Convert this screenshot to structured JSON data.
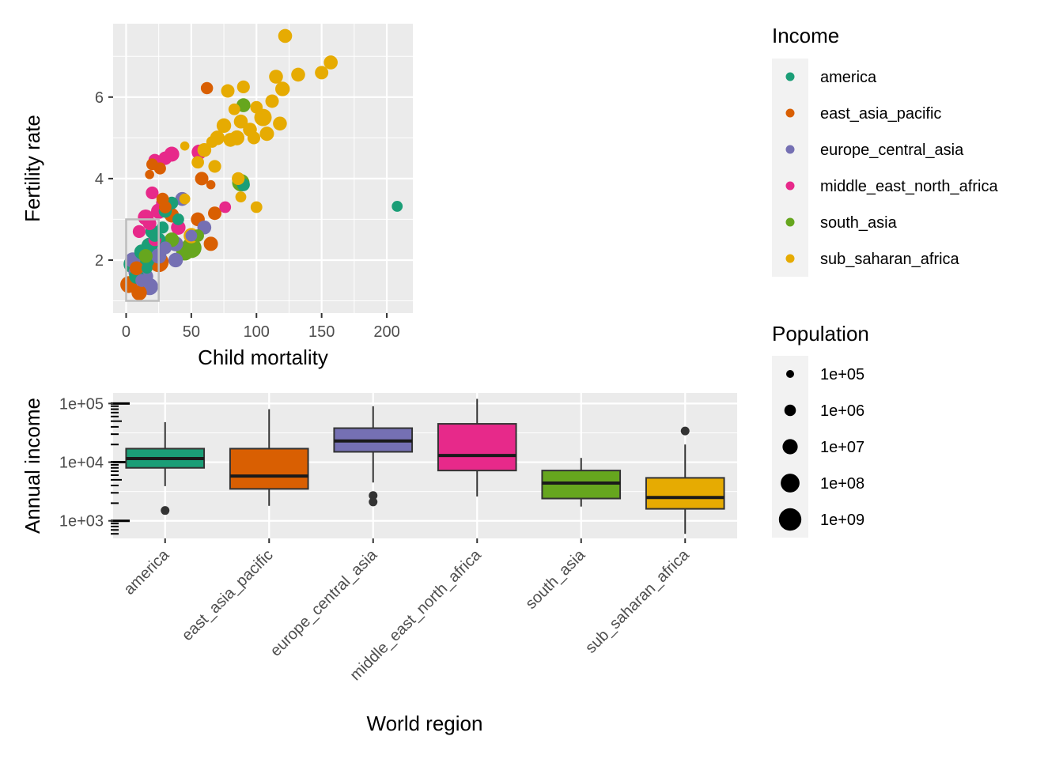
{
  "colors": {
    "panel_bg": "#ebebeb",
    "grid": "#ffffff",
    "text": "#000000",
    "tick_text": "#4d4d4d",
    "zoom_box": "#bdbdbd",
    "legend_key_bg": "#f2f2f2"
  },
  "chart_data": [
    {
      "type": "scatter",
      "xlabel": "Child mortality",
      "ylabel": "Fertility rate",
      "xlim": [
        -10,
        220
      ],
      "ylim": [
        0.7,
        7.8
      ],
      "xticks": [
        0,
        50,
        100,
        150,
        200
      ],
      "xtick_labels": [
        "0",
        "50",
        "100",
        "150",
        "200"
      ],
      "yticks": [
        2,
        4,
        6
      ],
      "ytick_labels": [
        "2",
        "4",
        "6"
      ],
      "zoom_box": {
        "x": [
          0,
          25
        ],
        "y": [
          1,
          3
        ]
      },
      "series": [
        {
          "name": "america",
          "color": "#1b9e77",
          "points": [
            {
              "x": 208,
              "y": 3.32,
              "pop": 3000000.0
            },
            {
              "x": 90,
              "y": 3.85,
              "pop": 10000000.0
            },
            {
              "x": 5,
              "y": 1.9,
              "pop": 300000000.0
            },
            {
              "x": 18,
              "y": 2.35,
              "pop": 100000000.0
            },
            {
              "x": 12,
              "y": 2.2,
              "pop": 40000000.0
            },
            {
              "x": 25,
              "y": 2.5,
              "pop": 20000000.0
            },
            {
              "x": 30,
              "y": 3.2,
              "pop": 12000000.0
            },
            {
              "x": 35,
              "y": 3.4,
              "pop": 10000000.0
            },
            {
              "x": 20,
              "y": 2.7,
              "pop": 20000000.0
            },
            {
              "x": 8,
              "y": 1.6,
              "pop": 35000000.0
            },
            {
              "x": 15,
              "y": 2.0,
              "pop": 200000000.0
            },
            {
              "x": 22,
              "y": 2.6,
              "pop": 8000000.0
            },
            {
              "x": 28,
              "y": 2.8,
              "pop": 6000000.0
            },
            {
              "x": 40,
              "y": 3.0,
              "pop": 5000000.0
            },
            {
              "x": 16,
              "y": 1.8,
              "pop": 3000000.0
            }
          ]
        },
        {
          "name": "east_asia_pacific",
          "color": "#d95f02",
          "points": [
            {
              "x": 62,
              "y": 6.22,
              "pop": 7000000.0
            },
            {
              "x": 2,
              "y": 1.4,
              "pop": 130000000.0
            },
            {
              "x": 10,
              "y": 1.2,
              "pop": 50000000.0
            },
            {
              "x": 25,
              "y": 1.95,
              "pop": 900000000.0
            },
            {
              "x": 26,
              "y": 4.25,
              "pop": 6000000.0
            },
            {
              "x": 20,
              "y": 4.35,
              "pop": 5000000.0
            },
            {
              "x": 18,
              "y": 4.1,
              "pop": 1000000.0
            },
            {
              "x": 58,
              "y": 4.0,
              "pop": 15000000.0
            },
            {
              "x": 65,
              "y": 3.85,
              "pop": 1000000.0
            },
            {
              "x": 68,
              "y": 3.15,
              "pop": 15000000.0
            },
            {
              "x": 65,
              "y": 2.4,
              "pop": 25000000.0
            },
            {
              "x": 30,
              "y": 3.3,
              "pop": 8000000.0
            },
            {
              "x": 35,
              "y": 3.1,
              "pop": 30000000.0
            },
            {
              "x": 8,
              "y": 1.8,
              "pop": 20000000.0
            },
            {
              "x": 55,
              "y": 3.0,
              "pop": 20000000.0
            },
            {
              "x": 28,
              "y": 3.5,
              "pop": 8000000.0
            }
          ]
        },
        {
          "name": "europe_central_asia",
          "color": "#7570b3",
          "points": [
            {
              "x": 5,
              "y": 2.0,
              "pop": 50000000.0
            },
            {
              "x": 18,
              "y": 1.35,
              "pop": 150000000.0
            },
            {
              "x": 38,
              "y": 2.0,
              "pop": 30000000.0
            },
            {
              "x": 43,
              "y": 3.5,
              "pop": 20000000.0
            },
            {
              "x": 60,
              "y": 2.8,
              "pop": 20000000.0
            },
            {
              "x": 38,
              "y": 2.4,
              "pop": 40000000.0
            },
            {
              "x": 25,
              "y": 2.1,
              "pop": 50000000.0
            },
            {
              "x": 15,
              "y": 1.6,
              "pop": 40000000.0
            },
            {
              "x": 8,
              "y": 1.7,
              "pop": 80000000.0
            },
            {
              "x": 12,
              "y": 1.5,
              "pop": 10000000.0
            },
            {
              "x": 50,
              "y": 2.6,
              "pop": 5000000.0
            },
            {
              "x": 30,
              "y": 2.3,
              "pop": 10000000.0
            }
          ]
        },
        {
          "name": "middle_east_north_africa",
          "color": "#e7298a",
          "points": [
            {
              "x": 35,
              "y": 4.6,
              "pop": 40000000.0
            },
            {
              "x": 56,
              "y": 4.65,
              "pop": 40000000.0
            },
            {
              "x": 30,
              "y": 4.5,
              "pop": 15000000.0
            },
            {
              "x": 22,
              "y": 4.45,
              "pop": 10000000.0
            },
            {
              "x": 20,
              "y": 3.65,
              "pop": 10000000.0
            },
            {
              "x": 28,
              "y": 3.4,
              "pop": 12000000.0
            },
            {
              "x": 25,
              "y": 3.2,
              "pop": 50000000.0
            },
            {
              "x": 15,
              "y": 3.05,
              "pop": 60000000.0
            },
            {
              "x": 18,
              "y": 2.9,
              "pop": 15000000.0
            },
            {
              "x": 76,
              "y": 3.3,
              "pop": 5000000.0
            },
            {
              "x": 10,
              "y": 2.7,
              "pop": 10000000.0
            },
            {
              "x": 22,
              "y": 2.5,
              "pop": 10000000.0
            },
            {
              "x": 40,
              "y": 2.8,
              "pop": 30000000.0
            }
          ]
        },
        {
          "name": "south_asia",
          "color": "#66a61e",
          "points": [
            {
              "x": 90,
              "y": 5.8,
              "pop": 20000000.0
            },
            {
              "x": 88,
              "y": 3.9,
              "pop": 180000000.0
            },
            {
              "x": 50,
              "y": 2.3,
              "pop": 1200000000.0
            },
            {
              "x": 45,
              "y": 2.2,
              "pop": 160000000.0
            },
            {
              "x": 35,
              "y": 2.5,
              "pop": 30000000.0
            },
            {
              "x": 15,
              "y": 2.1,
              "pop": 20000000.0
            },
            {
              "x": 55,
              "y": 2.6,
              "pop": 8000000.0
            }
          ]
        },
        {
          "name": "sub_saharan_africa",
          "color": "#e6ab02",
          "points": [
            {
              "x": 122,
              "y": 7.5,
              "pop": 20000000.0
            },
            {
              "x": 157,
              "y": 6.85,
              "pop": 20000000.0
            },
            {
              "x": 150,
              "y": 6.6,
              "pop": 15000000.0
            },
            {
              "x": 132,
              "y": 6.55,
              "pop": 20000000.0
            },
            {
              "x": 115,
              "y": 6.5,
              "pop": 20000000.0
            },
            {
              "x": 120,
              "y": 6.2,
              "pop": 30000000.0
            },
            {
              "x": 90,
              "y": 6.25,
              "pop": 10000000.0
            },
            {
              "x": 78,
              "y": 6.15,
              "pop": 15000000.0
            },
            {
              "x": 112,
              "y": 5.9,
              "pop": 15000000.0
            },
            {
              "x": 100,
              "y": 5.75,
              "pop": 8000000.0
            },
            {
              "x": 83,
              "y": 5.7,
              "pop": 5000000.0
            },
            {
              "x": 105,
              "y": 5.5,
              "pop": 180000000.0
            },
            {
              "x": 118,
              "y": 5.35,
              "pop": 20000000.0
            },
            {
              "x": 88,
              "y": 5.4,
              "pop": 20000000.0
            },
            {
              "x": 75,
              "y": 5.3,
              "pop": 30000000.0
            },
            {
              "x": 95,
              "y": 5.2,
              "pop": 20000000.0
            },
            {
              "x": 108,
              "y": 5.1,
              "pop": 25000000.0
            },
            {
              "x": 85,
              "y": 5.0,
              "pop": 40000000.0
            },
            {
              "x": 98,
              "y": 5.0,
              "pop": 10000000.0
            },
            {
              "x": 80,
              "y": 4.95,
              "pop": 20000000.0
            },
            {
              "x": 70,
              "y": 5.0,
              "pop": 30000000.0
            },
            {
              "x": 66,
              "y": 4.9,
              "pop": 5000000.0
            },
            {
              "x": 60,
              "y": 4.7,
              "pop": 20000000.0
            },
            {
              "x": 55,
              "y": 4.4,
              "pop": 8000000.0
            },
            {
              "x": 68,
              "y": 4.3,
              "pop": 10000000.0
            },
            {
              "x": 45,
              "y": 4.8,
              "pop": 1000000.0
            },
            {
              "x": 86,
              "y": 4.0,
              "pop": 10000000.0
            },
            {
              "x": 88,
              "y": 3.55,
              "pop": 3000000.0
            },
            {
              "x": 100,
              "y": 3.3,
              "pop": 5000000.0
            },
            {
              "x": 45,
              "y": 3.5,
              "pop": 3000000.0
            },
            {
              "x": 50,
              "y": 2.6,
              "pop": 50000000.0
            }
          ]
        }
      ]
    },
    {
      "type": "box",
      "xlabel": "World region",
      "ylabel": "Annual income",
      "yscale": "log10",
      "ylim_log10": [
        2.7,
        5.18
      ],
      "yticks_log10": [
        3,
        4,
        5
      ],
      "ytick_labels": [
        "1e+03",
        "1e+04",
        "1e+05"
      ],
      "categories": [
        "america",
        "east_asia_pacific",
        "europe_central_asia",
        "middle_east_north_africa",
        "south_asia",
        "sub_saharan_africa"
      ],
      "boxes": [
        {
          "name": "america",
          "color": "#1b9e77",
          "min": 3900,
          "q1": 8000,
          "median": 11500,
          "q3": 17000,
          "max": 48000,
          "outliers": [
            1500
          ]
        },
        {
          "name": "east_asia_pacific",
          "color": "#d95f02",
          "min": 1800,
          "q1": 3500,
          "median": 5800,
          "q3": 17000,
          "max": 80000,
          "outliers": []
        },
        {
          "name": "europe_central_asia",
          "color": "#7570b3",
          "min": 4500,
          "q1": 15000,
          "median": 23000,
          "q3": 38000,
          "max": 90000,
          "outliers": [
            2700,
            2100
          ]
        },
        {
          "name": "middle_east_north_africa",
          "color": "#e7298a",
          "min": 2600,
          "q1": 7200,
          "median": 13000,
          "q3": 45000,
          "max": 120000,
          "outliers": []
        },
        {
          "name": "south_asia",
          "color": "#66a61e",
          "min": 1750,
          "q1": 2400,
          "median": 4400,
          "q3": 7200,
          "max": 11800,
          "outliers": []
        },
        {
          "name": "sub_saharan_africa",
          "color": "#e6ab02",
          "min": 600,
          "q1": 1600,
          "median": 2500,
          "q3": 5400,
          "max": 20000,
          "outliers": [
            34000
          ]
        }
      ]
    }
  ],
  "legend": {
    "income_title": "Income",
    "income_items": [
      {
        "label": "america",
        "color": "#1b9e77"
      },
      {
        "label": "east_asia_pacific",
        "color": "#d95f02"
      },
      {
        "label": "europe_central_asia",
        "color": "#7570b3"
      },
      {
        "label": "middle_east_north_africa",
        "color": "#e7298a"
      },
      {
        "label": "south_asia",
        "color": "#66a61e"
      },
      {
        "label": "sub_saharan_africa",
        "color": "#e6ab02"
      }
    ],
    "population_title": "Population",
    "population_items": [
      {
        "label": "1e+05",
        "pop": 100000.0
      },
      {
        "label": "1e+06",
        "pop": 1000000.0
      },
      {
        "label": "1e+07",
        "pop": 10000000.0
      },
      {
        "label": "1e+08",
        "pop": 100000000.0
      },
      {
        "label": "1e+09",
        "pop": 1000000000.0
      }
    ]
  }
}
